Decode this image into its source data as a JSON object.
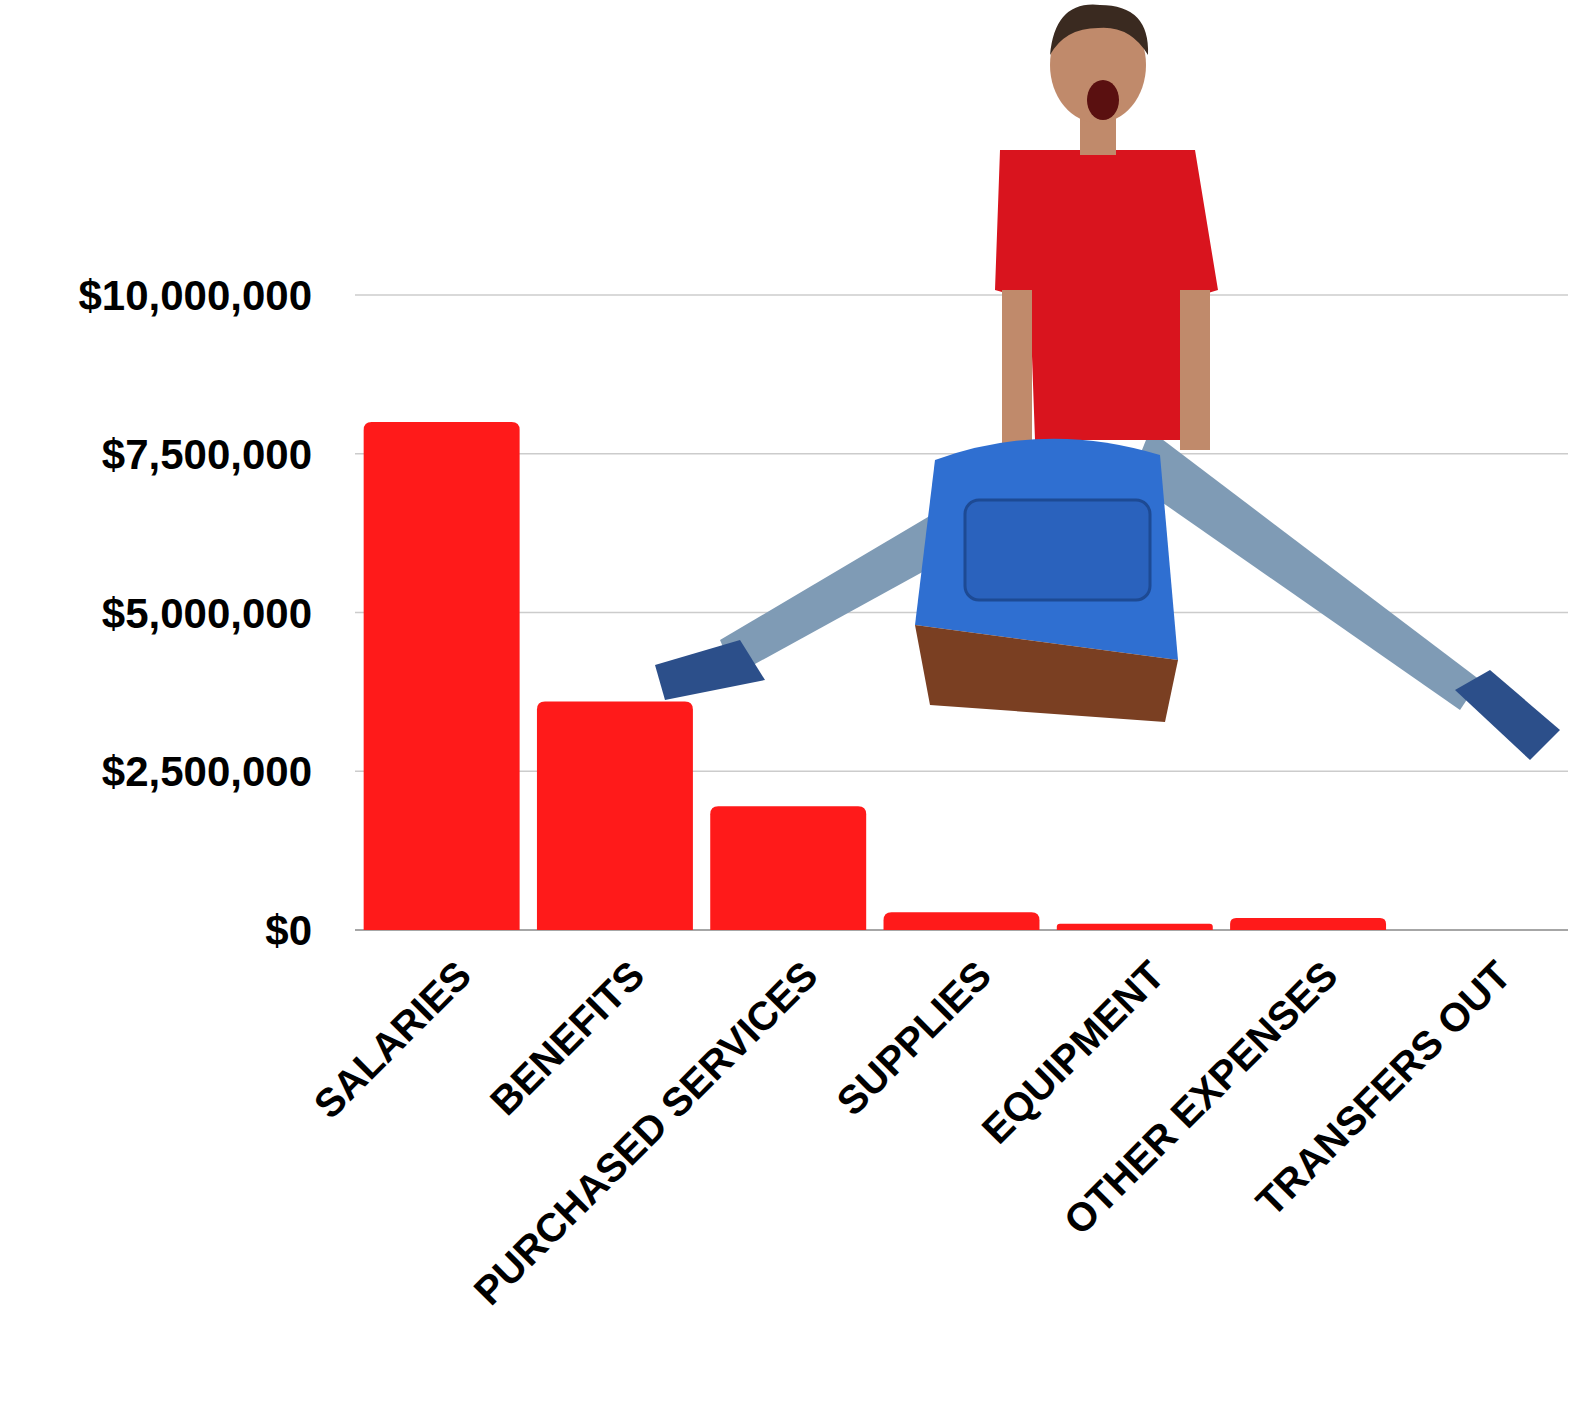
{
  "chart_data": {
    "type": "bar",
    "categories": [
      "SALARIES",
      "BENEFITS",
      "PURCHASED SERVICES",
      "SUPPLIES",
      "EQUIPMENT",
      "OTHER EXPENSES",
      "TRANSFERS OUT"
    ],
    "values": [
      8000000,
      3600000,
      1950000,
      280000,
      100000,
      190000,
      0
    ],
    "color": "#ff1a1a",
    "ylim": [
      0,
      10000000
    ],
    "yticks": [
      {
        "value": 0,
        "label": "$0"
      },
      {
        "value": 2500000,
        "label": "$2,500,000"
      },
      {
        "value": 5000000,
        "label": "$5,000,000"
      },
      {
        "value": 7500000,
        "label": "$7,500,000"
      },
      {
        "value": 10000000,
        "label": "$10,000,000"
      }
    ],
    "grid": true
  }
}
